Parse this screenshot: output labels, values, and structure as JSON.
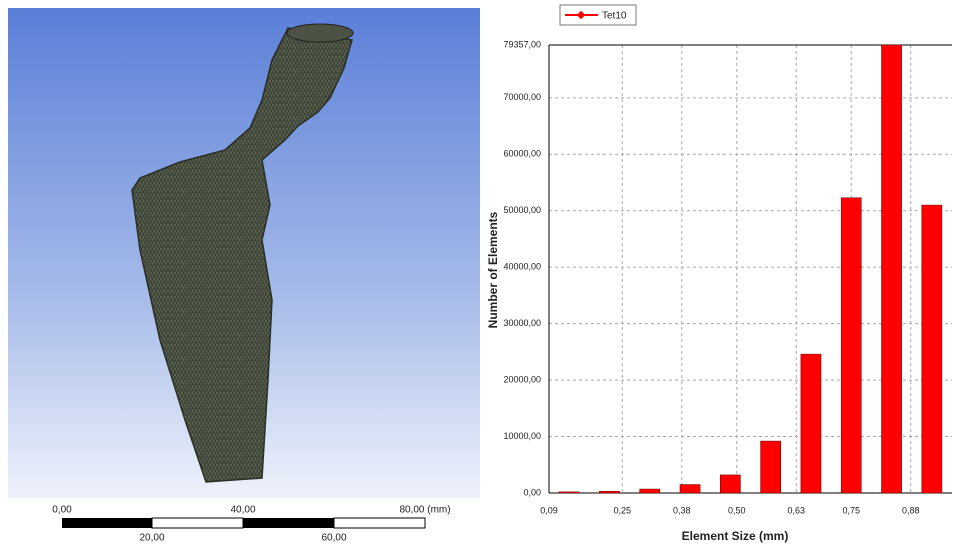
{
  "scale_bar": [
    "0,00",
    "40,00",
    "80,00 (mm)",
    "20,00",
    "60,00"
  ],
  "chart_data": {
    "type": "histogram",
    "x_label": "Element Size (mm)",
    "y_label": "Number of Elements",
    "bins": [
      0.09,
      0.178,
      0.266,
      0.354,
      0.442,
      0.53,
      0.618,
      0.706,
      0.794,
      0.882,
      0.97
    ],
    "series": [
      {
        "name": "Tet10",
        "color": "#ff0000",
        "values": [
          200,
          300,
          700,
          1500,
          3200,
          9200,
          24600,
          52300,
          79357,
          51000
        ]
      }
    ],
    "xlim": [
      0.09,
      0.97
    ],
    "xticks": [
      {
        "value": 0.09,
        "label": "0,09"
      },
      {
        "value": 0.25,
        "label": "0,25"
      },
      {
        "value": 0.38,
        "label": "0,38"
      },
      {
        "value": 0.5,
        "label": "0,50"
      },
      {
        "value": 0.63,
        "label": "0,63"
      },
      {
        "value": 0.75,
        "label": "0,75"
      },
      {
        "value": 0.88,
        "label": "0,88"
      }
    ],
    "ylim": [
      0,
      79357
    ],
    "yticks": [
      {
        "value": 0,
        "label": "0,00"
      },
      {
        "value": 10000,
        "label": "10000,00"
      },
      {
        "value": 20000,
        "label": "20000,00"
      },
      {
        "value": 30000,
        "label": "30000,00"
      },
      {
        "value": 40000,
        "label": "40000,00"
      },
      {
        "value": 50000,
        "label": "50000,00"
      },
      {
        "value": 60000,
        "label": "60000,00"
      },
      {
        "value": 70000,
        "label": "70000,00"
      },
      {
        "value": 79357,
        "label": "79357,00"
      }
    ],
    "grid": true,
    "legend": "top-left"
  }
}
